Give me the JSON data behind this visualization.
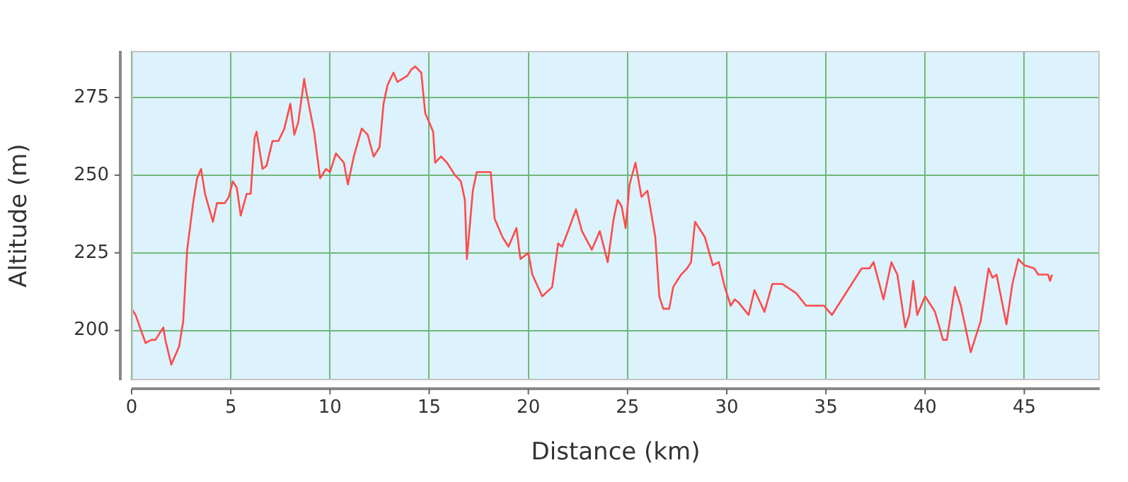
{
  "chart_data": {
    "type": "line",
    "xlabel": "Distance (km)",
    "ylabel": "Altitude (m)",
    "color": "#ff4a4a",
    "marker": "none",
    "grid": true,
    "xlim": [
      0,
      48.8
    ],
    "xticks": [
      0,
      5,
      10,
      15,
      20,
      25,
      30,
      35,
      40,
      45
    ],
    "ylim": [
      184,
      290
    ],
    "yticks": [
      200,
      225,
      250,
      275
    ],
    "x": [
      0,
      0.2,
      0.7,
      1.0,
      1.2,
      1.6,
      1.7,
      2.0,
      2.4,
      2.6,
      2.8,
      3.0,
      3.1,
      3.3,
      3.5,
      3.7,
      4.1,
      4.3,
      4.7,
      4.9,
      5.1,
      5.3,
      5.5,
      5.8,
      6.0,
      6.2,
      6.3,
      6.6,
      6.8,
      7.1,
      7.4,
      7.7,
      8.0,
      8.2,
      8.4,
      8.7,
      8.8,
      9.2,
      9.5,
      9.8,
      10.0,
      10.3,
      10.7,
      10.9,
      11.2,
      11.6,
      11.9,
      12.2,
      12.5,
      12.7,
      12.9,
      13.2,
      13.4,
      13.9,
      14.1,
      14.3,
      14.6,
      14.8,
      15.2,
      15.3,
      15.6,
      15.9,
      16.3,
      16.6,
      16.8,
      16.9,
      17.2,
      17.4,
      17.7,
      18.1,
      18.3,
      18.7,
      19.0,
      19.4,
      19.6,
      20.0,
      20.2,
      20.7,
      21.2,
      21.5,
      21.7,
      22.0,
      22.4,
      22.7,
      23.2,
      23.6,
      24.0,
      24.3,
      24.5,
      24.7,
      24.9,
      25.1,
      25.4,
      25.7,
      26.0,
      26.4,
      26.6,
      26.8,
      27.1,
      27.3,
      27.7,
      28.0,
      28.2,
      28.4,
      28.9,
      29.3,
      29.6,
      29.9,
      30.2,
      30.4,
      30.6,
      31.1,
      31.4,
      31.9,
      32.3,
      32.8,
      33.5,
      34.0,
      34.9,
      35.3,
      35.8,
      36.3,
      36.8,
      37.2,
      37.4,
      37.9,
      38.3,
      38.6,
      39.0,
      39.2,
      39.4,
      39.6,
      40.0,
      40.5,
      40.9,
      41.1,
      41.5,
      41.8,
      42.3,
      42.8,
      43.2,
      43.4,
      43.6,
      44.1,
      44.4,
      44.7,
      45.0,
      45.5,
      45.7,
      46.2,
      46.3,
      46.4
    ],
    "values": [
      207,
      205,
      196,
      197,
      197,
      201,
      197,
      189,
      195,
      203,
      226,
      236,
      241,
      249,
      252,
      244,
      235,
      241,
      241,
      243,
      248,
      246,
      237,
      244,
      244,
      262,
      264,
      252,
      253,
      261,
      261,
      265,
      273,
      263,
      267,
      281,
      277,
      264,
      249,
      252,
      251,
      257,
      254,
      247,
      256,
      265,
      263,
      256,
      259,
      273,
      279,
      283,
      280,
      282,
      284,
      285,
      283,
      270,
      264,
      254,
      256,
      254,
      250,
      248,
      242,
      223,
      245,
      251,
      251,
      251,
      236,
      230,
      227,
      233,
      223,
      225,
      218,
      211,
      214,
      228,
      227,
      232,
      239,
      232,
      226,
      232,
      222,
      236,
      242,
      240,
      233,
      247,
      254,
      243,
      245,
      230,
      211,
      207,
      207,
      214,
      218,
      220,
      222,
      235,
      230,
      221,
      222,
      214,
      208,
      210,
      209,
      205,
      213,
      206,
      215,
      215,
      212,
      208,
      208,
      205,
      210,
      215,
      220,
      220,
      222,
      210,
      222,
      218,
      201,
      205,
      216,
      205,
      211,
      206,
      197,
      197,
      214,
      208,
      193,
      203,
      220,
      217,
      218,
      202,
      215,
      223,
      221,
      220,
      218,
      218,
      216,
      218
    ]
  }
}
